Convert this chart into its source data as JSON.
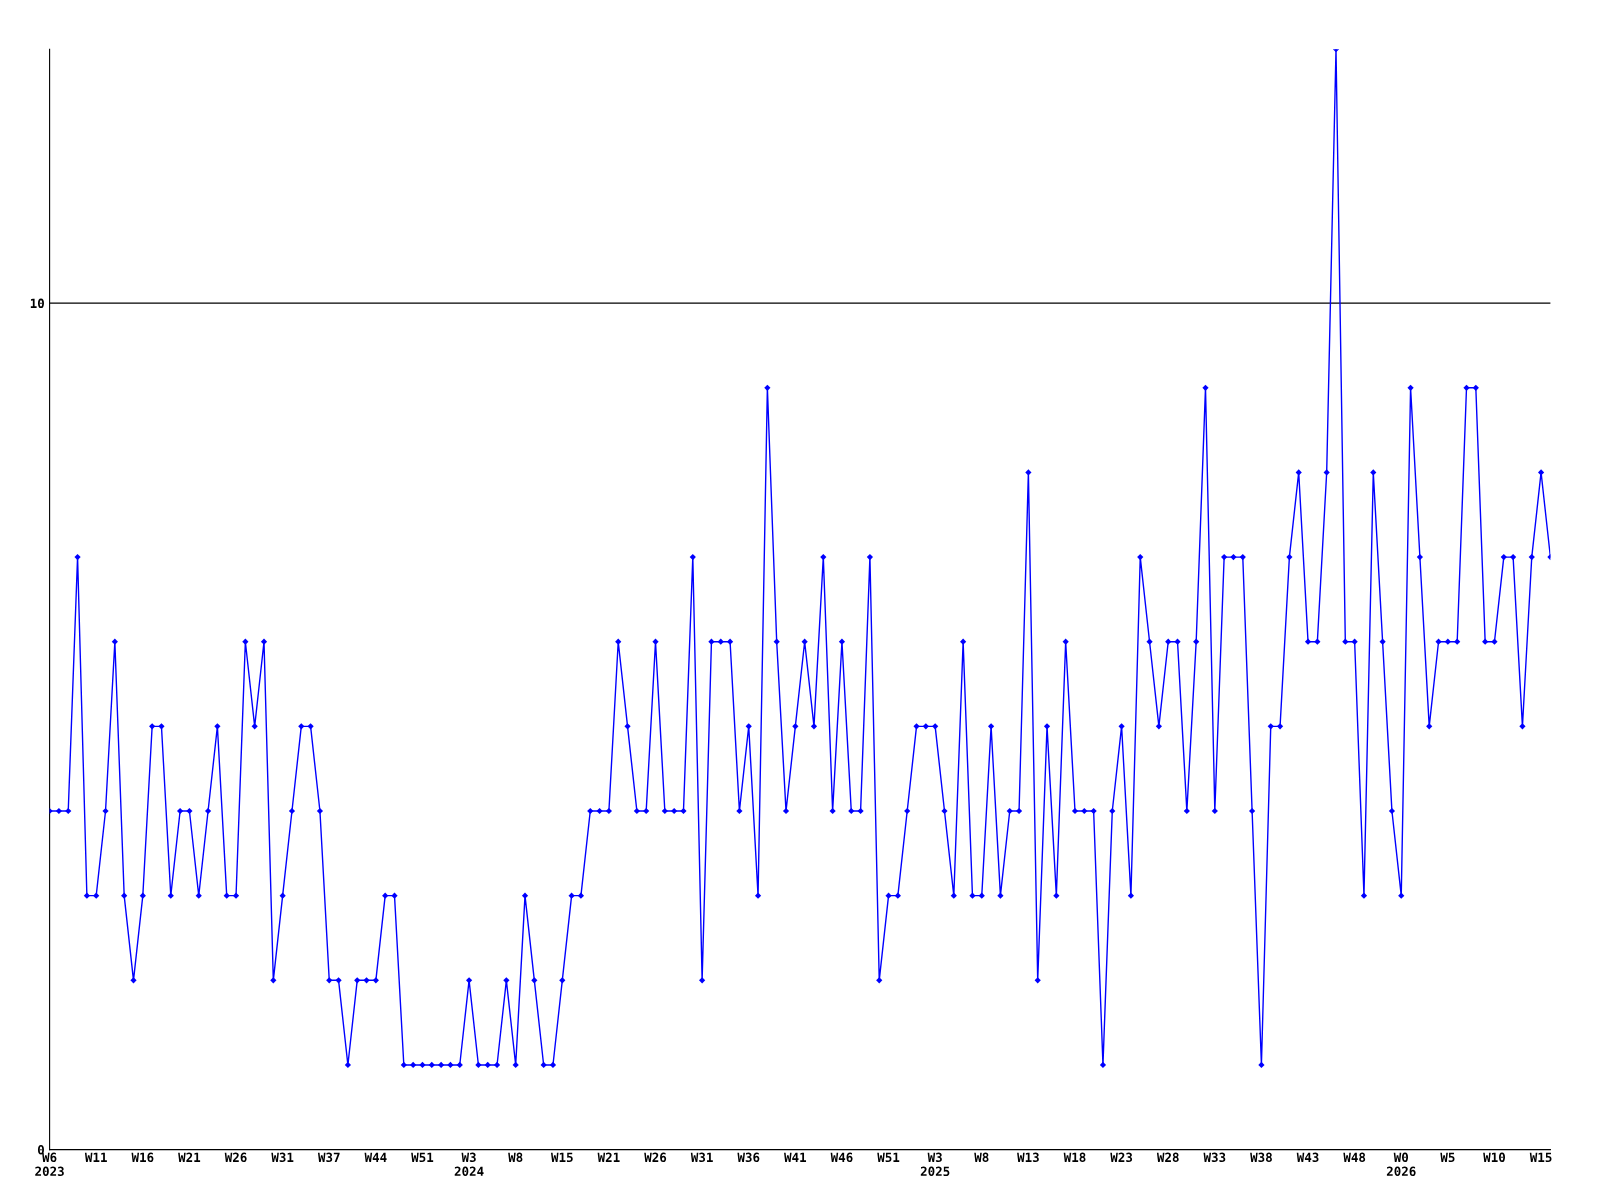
{
  "chart_data": {
    "type": "line",
    "categories": [
      "W6\n2023",
      null,
      null,
      null,
      null,
      "W11",
      null,
      null,
      null,
      null,
      "W16",
      null,
      null,
      null,
      null,
      "W21",
      null,
      null,
      null,
      null,
      "W26",
      null,
      null,
      null,
      null,
      "W31",
      null,
      null,
      null,
      null,
      "W37",
      null,
      null,
      null,
      null,
      "W44",
      null,
      null,
      null,
      null,
      "W51",
      null,
      null,
      null,
      null,
      "W3\n2024",
      null,
      null,
      null,
      null,
      "W8",
      null,
      null,
      null,
      null,
      "W15",
      null,
      null,
      null,
      null,
      "W21",
      null,
      null,
      null,
      null,
      "W26",
      null,
      null,
      null,
      null,
      "W31",
      null,
      null,
      null,
      null,
      "W36",
      null,
      null,
      null,
      null,
      "W41",
      null,
      null,
      null,
      null,
      "W46",
      null,
      null,
      null,
      null,
      "W51",
      null,
      null,
      null,
      null,
      "W3\n2025",
      null,
      null,
      null,
      null,
      "W8",
      null,
      null,
      null,
      null,
      "W13",
      null,
      null,
      null,
      null,
      "W18",
      null,
      null,
      null,
      null,
      "W23",
      null,
      null,
      null,
      null,
      "W28",
      null,
      null,
      null,
      null,
      "W33",
      null,
      null,
      null,
      null,
      "W38",
      null,
      null,
      null,
      null,
      "W43",
      null,
      null,
      null,
      null,
      "W48",
      null,
      null,
      null,
      null,
      "W0\n2026",
      null,
      null,
      null,
      null,
      "W5",
      null,
      null,
      null,
      null,
      "W10",
      null,
      null,
      null,
      null,
      "W15",
      null
    ],
    "series": [
      {
        "color": "#0000ff",
        "values": [
          4,
          4,
          4,
          7,
          3,
          3,
          4,
          6,
          3,
          2,
          3,
          5,
          5,
          3,
          4,
          4,
          3,
          4,
          5,
          3,
          3,
          6,
          5,
          6,
          2,
          3,
          4,
          5,
          5,
          4,
          2,
          2,
          1,
          2,
          2,
          2,
          3,
          3,
          1,
          1,
          1,
          1,
          1,
          1,
          1,
          2,
          1,
          1,
          1,
          2,
          1,
          3,
          2,
          1,
          1,
          2,
          3,
          3,
          4,
          4,
          4,
          6,
          5,
          4,
          4,
          6,
          4,
          4,
          4,
          7,
          2,
          6,
          6,
          6,
          4,
          5,
          3,
          9,
          6,
          4,
          5,
          6,
          5,
          7,
          4,
          6,
          4,
          4,
          7,
          2,
          3,
          3,
          4,
          5,
          5,
          5,
          4,
          3,
          6,
          3,
          3,
          5,
          3,
          4,
          4,
          8,
          2,
          5,
          3,
          6,
          4,
          4,
          4,
          1,
          4,
          5,
          3,
          7,
          6,
          5,
          6,
          6,
          4,
          6,
          9,
          4,
          7,
          7,
          7,
          4,
          1,
          5,
          5,
          7,
          8,
          6,
          6,
          8,
          13,
          6,
          6,
          3,
          8,
          6,
          4,
          3,
          9,
          7,
          5,
          6,
          6,
          6,
          9,
          9,
          6,
          6,
          7,
          7,
          5,
          7,
          8,
          7
        ]
      }
    ],
    "ylim": [
      0,
      13
    ],
    "yticks": [
      0,
      10
    ],
    "grid": "y",
    "marker": "diamond",
    "line_style": "solid"
  }
}
